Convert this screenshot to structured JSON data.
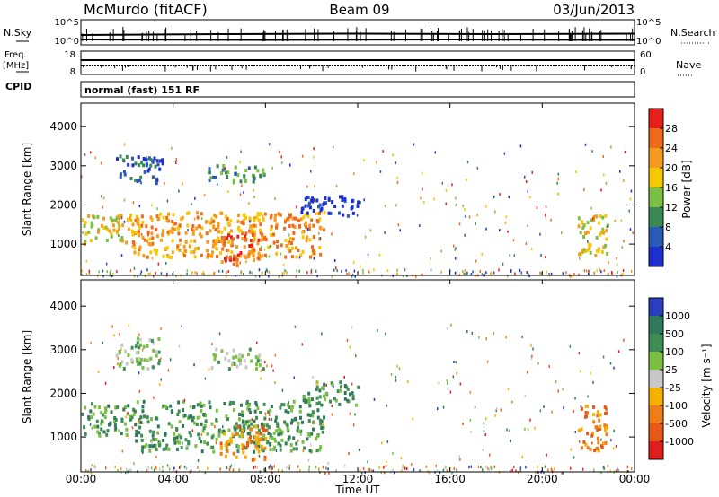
{
  "header": {
    "station": "McMurdo (fitACF)",
    "beam": "Beam 09",
    "date": "03/Jun/2013"
  },
  "noise_panel": {
    "left_label": "N.Sky",
    "right_label": "N.Search",
    "left_ticks": [
      "10^5",
      "10^0"
    ],
    "right_ticks": [
      "10^5",
      "10^0"
    ]
  },
  "freq_panel": {
    "left_label_1": "Freq.",
    "left_label_2": "[MHz]",
    "right_label": "Nave",
    "left_ticks": [
      "18",
      "8"
    ],
    "right_ticks": [
      "60",
      "0"
    ]
  },
  "cpid": {
    "label": "CPID",
    "mode": "normal (fast) 151 RF"
  },
  "colors": {
    "power": [
      "#1e2fd0",
      "#2a5ab8",
      "#3a8a56",
      "#7bc043",
      "#f6c800",
      "#f59b1f",
      "#ef6a1a",
      "#e8201c"
    ],
    "velocity": [
      "#2a3fc0",
      "#2f7a5a",
      "#3e8e56",
      "#7bc043",
      "#c8c8c8",
      "#f6b000",
      "#f07e18",
      "#e85818",
      "#e01e1c"
    ]
  },
  "chart_data": [
    {
      "type": "heatmap",
      "name": "power",
      "ylabel": "Slant Range [km]",
      "ylim": [
        200,
        4600
      ],
      "yticks": [
        "1000",
        "2000",
        "3000",
        "4000"
      ],
      "xlim": [
        0,
        24
      ],
      "colorbar_label": "Power [dB]",
      "colorbar_ticks": [
        "28",
        "24",
        "20",
        "16",
        "12",
        "8",
        "4"
      ],
      "colorbar_range": [
        0,
        32
      ],
      "features": [
        {
          "x0": 0.0,
          "x1": 2.2,
          "y0": 1050,
          "y1": 1800,
          "level": 18
        },
        {
          "x0": 2.2,
          "x1": 10.5,
          "y0": 700,
          "y1": 1850,
          "level": 22
        },
        {
          "x0": 6.0,
          "x1": 8.0,
          "y0": 500,
          "y1": 1300,
          "level": 28
        },
        {
          "x0": 1.5,
          "x1": 3.5,
          "y0": 2600,
          "y1": 3300,
          "level": 8
        },
        {
          "x0": 5.5,
          "x1": 8.0,
          "y0": 2600,
          "y1": 3050,
          "level": 12
        },
        {
          "x0": 9.5,
          "x1": 12.0,
          "y0": 1750,
          "y1": 2300,
          "level": 4
        },
        {
          "x0": 21.5,
          "x1": 22.8,
          "y0": 700,
          "y1": 1800,
          "level": 20
        }
      ]
    },
    {
      "type": "heatmap",
      "name": "velocity",
      "ylabel": "Slant Range [km]",
      "ylim": [
        200,
        4600
      ],
      "yticks": [
        "1000",
        "2000",
        "3000",
        "4000"
      ],
      "xlim": [
        0,
        24
      ],
      "xticks": [
        "00:00",
        "04:00",
        "08:00",
        "12:00",
        "16:00",
        "20:00",
        "00:00"
      ],
      "xlabel": "Time UT",
      "colorbar_label": "Velocity [m s⁻¹]",
      "colorbar_ticks": [
        "1000",
        "500",
        "100",
        "25",
        "-25",
        "-100",
        "-500",
        "-1000"
      ],
      "features": [
        {
          "x0": 0.0,
          "x1": 2.2,
          "y0": 1050,
          "y1": 1800,
          "level": 2
        },
        {
          "x0": 2.2,
          "x1": 10.5,
          "y0": 700,
          "y1": 1850,
          "level": 2
        },
        {
          "x0": 6.0,
          "x1": 8.0,
          "y0": 500,
          "y1": 1300,
          "level": 6
        },
        {
          "x0": 1.5,
          "x1": 3.5,
          "y0": 2600,
          "y1": 3300,
          "level": 3
        },
        {
          "x0": 5.5,
          "x1": 8.0,
          "y0": 2600,
          "y1": 3050,
          "level": 3
        },
        {
          "x0": 9.5,
          "x1": 12.0,
          "y0": 1750,
          "y1": 2300,
          "level": 2
        },
        {
          "x0": 21.5,
          "x1": 22.8,
          "y0": 700,
          "y1": 1800,
          "level": 6
        }
      ]
    }
  ]
}
